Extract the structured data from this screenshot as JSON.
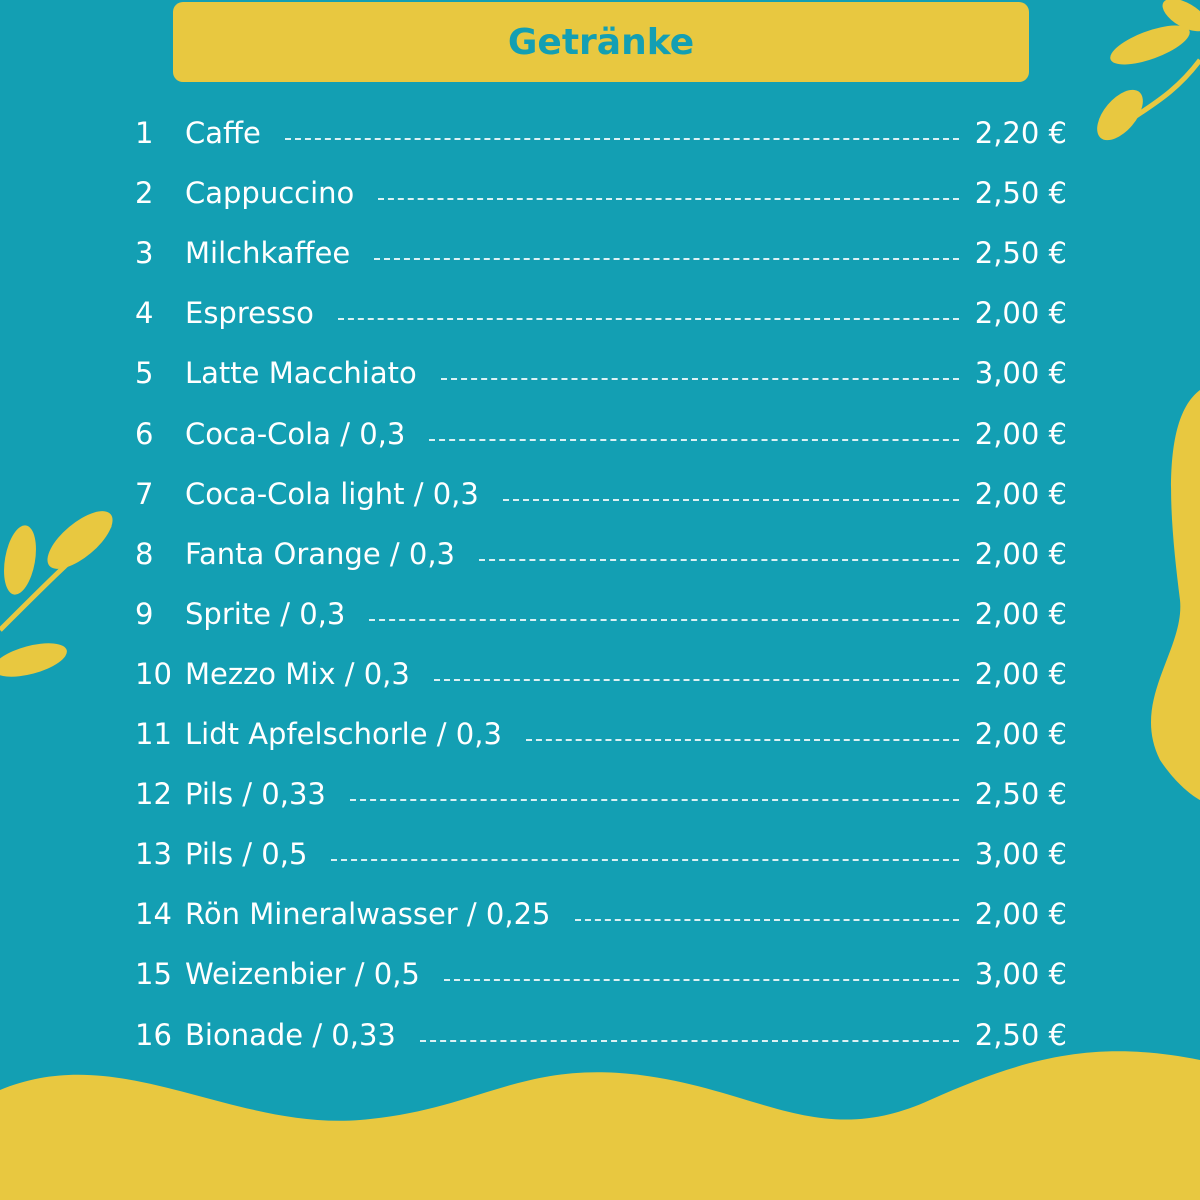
{
  "header": {
    "title": "Getränke"
  },
  "items": [
    {
      "number": "1",
      "name": "Caffe",
      "price": "2,20 €"
    },
    {
      "number": "2",
      "name": "Cappuccino",
      "price": "2,50 €"
    },
    {
      "number": "3",
      "name": "Milchkaffee",
      "price": "2,50 €"
    },
    {
      "number": "4",
      "name": "Espresso",
      "price": "2,00 €"
    },
    {
      "number": "5",
      "name": "Latte Macchiato",
      "price": "3,00 €"
    },
    {
      "number": "6",
      "name": "Coca-Cola / 0,3",
      "price": "2,00 €"
    },
    {
      "number": "7",
      "name": "Coca-Cola light / 0,3",
      "price": "2,00 €"
    },
    {
      "number": "8",
      "name": "Fanta Orange / 0,3",
      "price": "2,00 €"
    },
    {
      "number": "9",
      "name": "Sprite / 0,3",
      "price": "2,00 €"
    },
    {
      "number": "10",
      "name": "Mezzo Mix / 0,3",
      "price": "2,00 €"
    },
    {
      "number": "11",
      "name": "Lidt Apfelschorle / 0,3",
      "price": "2,00 €"
    },
    {
      "number": "12",
      "name": "Pils / 0,33",
      "price": "2,50 €"
    },
    {
      "number": "13",
      "name": "Pils / 0,5",
      "price": "3,00 €"
    },
    {
      "number": "14",
      "name": "Rön Mineralwasser / 0,25",
      "price": "2,00 €"
    },
    {
      "number": "15",
      "name": "Weizenbier / 0,5",
      "price": "3,00 €"
    },
    {
      "number": "16",
      "name": "Bionade / 0,33",
      "price": "2,50 €"
    }
  ]
}
